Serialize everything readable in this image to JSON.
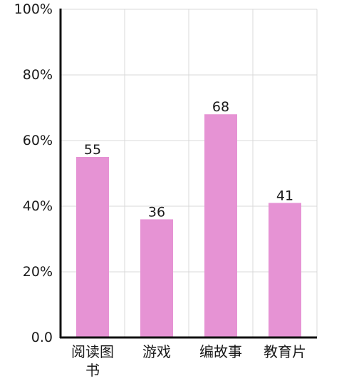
{
  "chart_data": {
    "type": "bar",
    "categories": [
      "阅读图书",
      "游戏",
      "编故事",
      "教育片"
    ],
    "values": [
      55,
      36,
      68,
      41
    ],
    "value_labels": [
      "55",
      "36",
      "68",
      "41"
    ],
    "yticks": [
      0,
      20,
      40,
      60,
      80,
      100
    ],
    "ytick_labels": [
      "0.0",
      "20%",
      "40%",
      "60%",
      "80%",
      "100%"
    ],
    "ylim": [
      0,
      100
    ],
    "grid": true,
    "bar_color": "#e693d4",
    "title": "",
    "xlabel": "",
    "ylabel": ""
  }
}
